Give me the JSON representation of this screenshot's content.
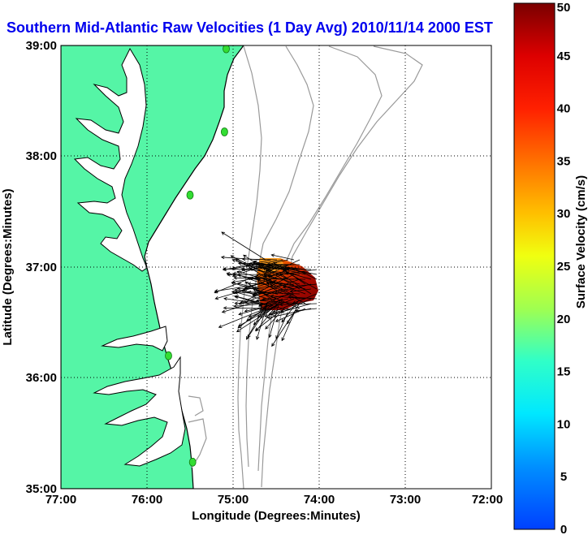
{
  "title": "Southern Mid-Atlantic Raw Velocities (1 Day Avg) 2010/11/14 2000 EST",
  "chart_data": {
    "type": "map",
    "xlabel": "Longitude (Degrees:Minutes)",
    "ylabel": "Latitude (Degrees:Minutes)",
    "xlim": [
      -77,
      -72
    ],
    "ylim": [
      35,
      39
    ],
    "x_ticks": [
      {
        "value": -77,
        "label": "77:00"
      },
      {
        "value": -76,
        "label": "76:00"
      },
      {
        "value": -75,
        "label": "75:00"
      },
      {
        "value": -74,
        "label": "74:00"
      },
      {
        "value": -73,
        "label": "73:00"
      },
      {
        "value": -72,
        "label": "72:00"
      }
    ],
    "y_ticks": [
      {
        "value": 35,
        "label": "35:00"
      },
      {
        "value": 36,
        "label": "36:00"
      },
      {
        "value": 37,
        "label": "37:00"
      },
      {
        "value": 38,
        "label": "38:00"
      },
      {
        "value": 39,
        "label": "39:00"
      }
    ],
    "grid": true,
    "colorbar": {
      "label": "Surface Velocity (cm/s)",
      "range": [
        0,
        50
      ],
      "ticks": [
        "0",
        "5",
        "10",
        "15",
        "20",
        "25",
        "30",
        "35",
        "40",
        "45",
        "50"
      ]
    },
    "stations": [
      {
        "lon": -75.08,
        "lat": 38.97
      },
      {
        "lon": -75.1,
        "lat": 38.22
      },
      {
        "lon": -75.5,
        "lat": 37.65
      },
      {
        "lon": -75.75,
        "lat": 36.2
      },
      {
        "lon": -75.47,
        "lat": 35.24
      }
    ],
    "colors": {
      "land": "#55f5a6",
      "coastline": "#000000",
      "bathymetry": "#999999",
      "station": "#33dd33",
      "vector": "#000000"
    }
  }
}
